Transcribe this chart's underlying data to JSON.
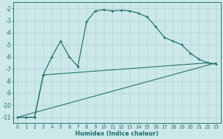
{
  "xlabel": "Humidex (Indice chaleur)",
  "background_color": "#cce8e8",
  "grid_color": "#aacccc",
  "line_color": "#1a6e6e",
  "xlim": [
    -0.5,
    23.5
  ],
  "ylim": [
    -11.5,
    -1.5
  ],
  "yticks": [
    -11,
    -10,
    -9,
    -8,
    -7,
    -6,
    -5,
    -4,
    -3,
    -2
  ],
  "xticks": [
    0,
    1,
    2,
    3,
    4,
    5,
    6,
    7,
    8,
    9,
    10,
    11,
    12,
    13,
    14,
    15,
    16,
    17,
    18,
    19,
    20,
    21,
    22,
    23
  ],
  "curve1_x": [
    0,
    1,
    2,
    3,
    4,
    5,
    6,
    7,
    8,
    9,
    10,
    11,
    12,
    13,
    14,
    15,
    16,
    17,
    18,
    19,
    20,
    21,
    22,
    23
  ],
  "curve1_y": [
    -11.0,
    -11.0,
    -11.0,
    -7.5,
    -6.0,
    -4.7,
    -6.0,
    -6.8,
    -3.1,
    -2.2,
    -2.1,
    -2.2,
    -2.15,
    -2.2,
    -2.4,
    -2.7,
    -3.5,
    -4.4,
    -4.7,
    -5.0,
    -5.7,
    -6.2,
    -6.5,
    -6.6
  ],
  "curve2_x": [
    0,
    1,
    2,
    3,
    22,
    23
  ],
  "curve2_y": [
    -11.0,
    -11.0,
    -11.0,
    -7.5,
    -6.5,
    -6.6
  ],
  "curve3_x": [
    0,
    23
  ],
  "curve3_y": [
    -11.0,
    -6.5
  ],
  "figsize": [
    3.2,
    2.0
  ],
  "dpi": 100
}
